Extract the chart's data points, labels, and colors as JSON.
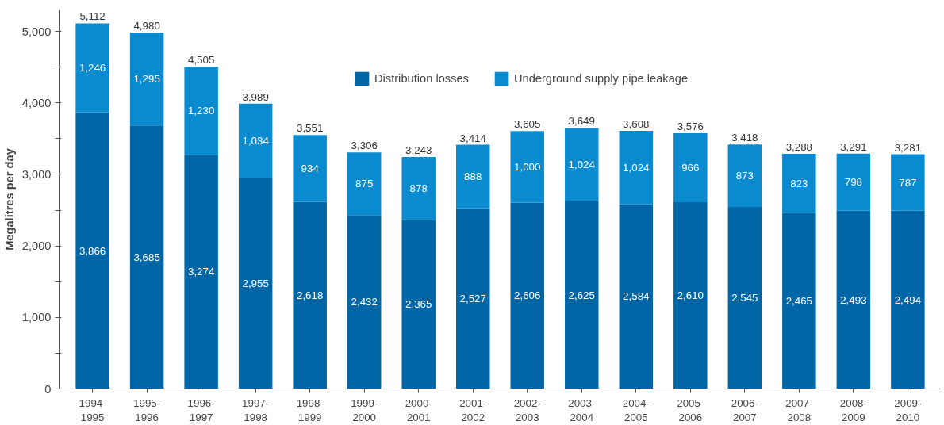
{
  "chart_data": {
    "type": "bar",
    "stacked": true,
    "ylabel": "Megalitres per day",
    "categories": [
      "1994-\n1995",
      "1995-\n1996",
      "1996-\n1997",
      "1997-\n1998",
      "1998-\n1999",
      "1999-\n2000",
      "2000-\n2001",
      "2001-\n2002",
      "2002-\n2003",
      "2003-\n2004",
      "2004-\n2005",
      "2005-\n2006",
      "2006-\n2007",
      "2007-\n2008",
      "2008-\n2009",
      "2009-\n2010"
    ],
    "series": [
      {
        "name": "Distribution losses",
        "color": "#0066a6",
        "values": [
          3866,
          3685,
          3274,
          2955,
          2618,
          2432,
          2365,
          2527,
          2606,
          2625,
          2584,
          2610,
          2545,
          2465,
          2493,
          2494
        ],
        "value_labels": [
          "3,866",
          "3,685",
          "3,274",
          "2,955",
          "2,618",
          "2,432",
          "2,365",
          "2,527",
          "2,606",
          "2,625",
          "2,584",
          "2,610",
          "2,545",
          "2,465",
          "2,493",
          "2,494"
        ]
      },
      {
        "name": "Underground supply pipe leakage",
        "color": "#0a8bcf",
        "values": [
          1246,
          1295,
          1230,
          1034,
          934,
          875,
          878,
          888,
          1000,
          1024,
          1024,
          966,
          873,
          823,
          798,
          787
        ],
        "value_labels": [
          "1,246",
          "1,295",
          "1,230",
          "1,034",
          "934",
          "875",
          "878",
          "888",
          "1,000",
          "1,024",
          "1,024",
          "966",
          "873",
          "823",
          "798",
          "787"
        ]
      }
    ],
    "totals": [
      "5,112",
      "4,980",
      "4,505",
      "3,989",
      "3,551",
      "3,306",
      "3,243",
      "3,414",
      "3,605",
      "3,649",
      "3,608",
      "3,576",
      "3,418",
      "3,288",
      "3,291",
      "3,281"
    ],
    "ylim": [
      0,
      5300
    ],
    "yticks": [
      0,
      {
        "value": 500,
        "label": null
      },
      {
        "value": 1000,
        "label": "1,000"
      },
      {
        "value": 1500,
        "label": null
      },
      {
        "value": 2000,
        "label": "2,000"
      },
      {
        "value": 2500,
        "label": null
      },
      {
        "value": 3000,
        "label": "3,000"
      },
      {
        "value": 3500,
        "label": null
      },
      {
        "value": 4000,
        "label": "4,000"
      },
      {
        "value": 4500,
        "label": null
      },
      {
        "value": 5000,
        "label": "5,000"
      }
    ],
    "grid": false,
    "legend": "top"
  }
}
